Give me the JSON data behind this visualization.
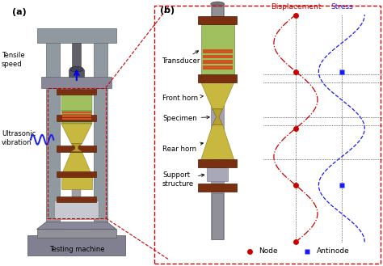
{
  "fig_width": 4.74,
  "fig_height": 3.29,
  "dpi": 100,
  "bg_color": "#ffffff",
  "label_a": "(a)",
  "label_b": "(b)",
  "text_tensile": "Tensile\nspeed",
  "text_ultrasonic": "Ultrasonic\nvibration",
  "text_testing": "Testing machine",
  "text_transducer": "Transducer",
  "text_front_horn": "Front horn",
  "text_specimen": "Specimen",
  "text_rear_horn": "Rear horn",
  "text_support": "Support\nstructure",
  "text_displacement": "Displacement",
  "text_stress": "Stress",
  "text_node": "Node",
  "text_antinode": "Antinode",
  "color_red": "#cc0000",
  "color_blue": "#1a1aff",
  "color_dashed_box": "#cc0000",
  "color_brown": "#7a3010",
  "color_frame_gray": "#9098a0",
  "color_gray_dark": "#606870",
  "color_transducer_green": "#8aaa58",
  "color_transducer_green2": "#a0c060",
  "color_band_orange": "#cc5522",
  "color_horn_yellow": "#c8b840",
  "color_specimen_gold": "#b8a030",
  "color_rod_gray": "#9898a8",
  "color_support_gray": "#a8a8b8"
}
